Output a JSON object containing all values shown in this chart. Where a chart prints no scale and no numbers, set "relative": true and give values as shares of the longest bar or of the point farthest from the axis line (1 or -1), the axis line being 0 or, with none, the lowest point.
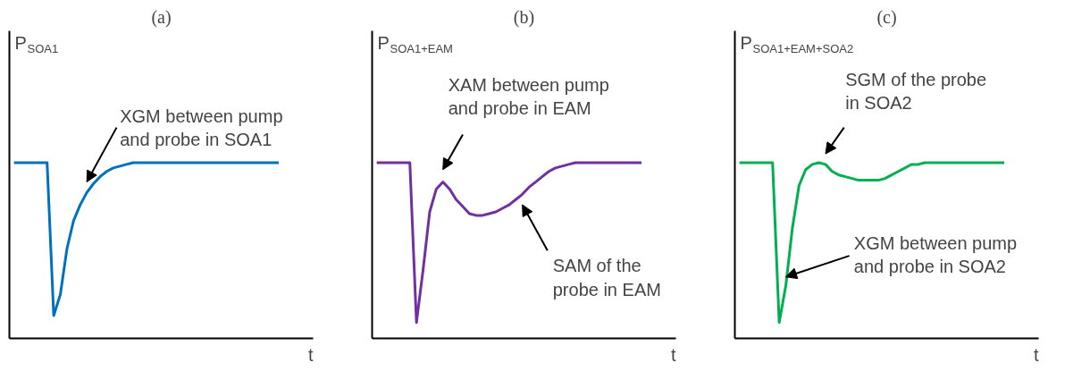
{
  "chart_data": [
    {
      "type": "line",
      "title": "(a)",
      "ylabel": "P$_{SOA1}$",
      "xlabel": "t",
      "relative": true,
      "categories": [
        null,
        null,
        null,
        null,
        null,
        null,
        null,
        null,
        null,
        null,
        null,
        null,
        null,
        null,
        null,
        null,
        null,
        null,
        null,
        null,
        null,
        null,
        null,
        null,
        null,
        null,
        null,
        null,
        null,
        null,
        null,
        null,
        null,
        null,
        null,
        null,
        null,
        null,
        null,
        null,
        null
      ],
      "series": [
        {
          "color": "#0070c0",
          "values": [
            1,
            1,
            1,
            1,
            1,
            1,
            0.13,
            0.25,
            0.51,
            0.67,
            0.76,
            0.83,
            0.88,
            0.92,
            0.95,
            0.97,
            0.98,
            0.99,
            1,
            1,
            1,
            1,
            1,
            1,
            1,
            1,
            1,
            1,
            1,
            1,
            1,
            1,
            1,
            1,
            1,
            1,
            1,
            1,
            1,
            1,
            1
          ]
        }
      ],
      "annotations": [
        "XGM between pump\nand probe in SOA1"
      ]
    },
    {
      "type": "line",
      "title": "(b)",
      "ylabel": "P$_{SOA1+EAM}$",
      "xlabel": "t",
      "relative": true,
      "categories": [
        null,
        null,
        null,
        null,
        null,
        null,
        null,
        null,
        null,
        null,
        null,
        null,
        null,
        null,
        null,
        null,
        null,
        null,
        null,
        null,
        null,
        null,
        null,
        null,
        null,
        null,
        null,
        null,
        null,
        null,
        null,
        null,
        null,
        null,
        null,
        null,
        null,
        null,
        null,
        null,
        null
      ],
      "series": [
        {
          "color": "#7030a0",
          "values": [
            1,
            1,
            1,
            1,
            1,
            1,
            0.09,
            0.39,
            0.72,
            0.85,
            0.89,
            0.85,
            0.79,
            0.75,
            0.71,
            0.7,
            0.7,
            0.71,
            0.72,
            0.74,
            0.76,
            0.79,
            0.82,
            0.86,
            0.89,
            0.92,
            0.95,
            0.97,
            0.98,
            0.99,
            1,
            1,
            1,
            1,
            1,
            1,
            1,
            1,
            1,
            1,
            1
          ]
        }
      ],
      "annotations": [
        "XAM between pump\nand probe in EAM",
        "SAM of the\nprobe in EAM"
      ]
    },
    {
      "type": "line",
      "title": "(c)",
      "ylabel": "P$_{SOA1+EAM+SOA2}$",
      "xlabel": "t",
      "relative": true,
      "categories": [
        null,
        null,
        null,
        null,
        null,
        null,
        null,
        null,
        null,
        null,
        null,
        null,
        null,
        null,
        null,
        null,
        null,
        null,
        null,
        null,
        null,
        null,
        null,
        null,
        null,
        null,
        null,
        null,
        null,
        null,
        null,
        null,
        null,
        null,
        null,
        null,
        null,
        null,
        null,
        null,
        null
      ],
      "series": [
        {
          "color": "#00b050",
          "values": [
            1,
            1,
            1,
            1,
            1,
            1,
            0.09,
            0.3,
            0.63,
            0.87,
            0.96,
            0.99,
            1,
            0.99,
            0.95,
            0.93,
            0.92,
            0.91,
            0.9,
            0.9,
            0.9,
            0.9,
            0.91,
            0.93,
            0.95,
            0.97,
            0.99,
            0.99,
            1,
            1,
            1,
            1,
            1,
            1,
            1,
            1,
            1,
            1,
            1,
            1,
            1
          ]
        }
      ],
      "annotations": [
        "SGM of the probe\nin SOA2",
        "XGM between pump\nand probe in SOA2"
      ]
    }
  ]
}
